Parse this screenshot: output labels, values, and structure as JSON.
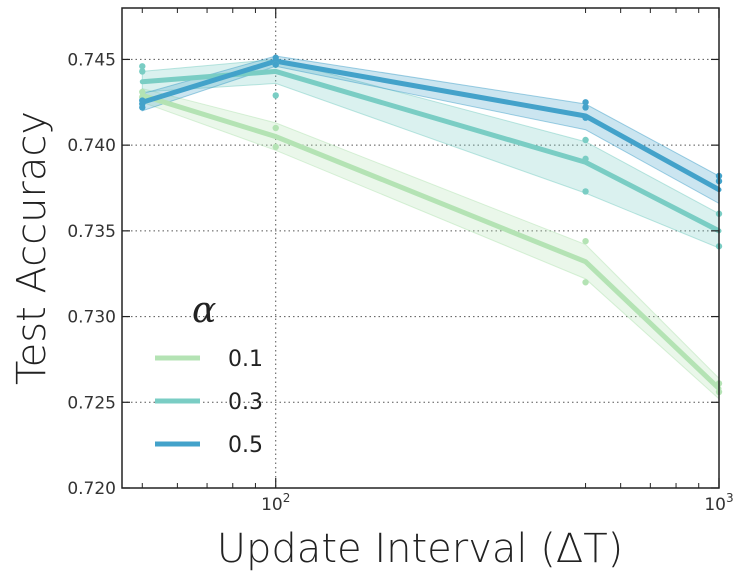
{
  "chart_data": {
    "type": "line",
    "title": "",
    "xlabel": "Update Interval (ΔT)",
    "ylabel": "Test Accuracy",
    "xscale": "log",
    "xlim": [
      45,
      1000
    ],
    "ylim": [
      0.72,
      0.748
    ],
    "x_ticks": [
      {
        "value": 100,
        "base": "10",
        "exp": "2"
      },
      {
        "value": 1000,
        "base": "10",
        "exp": "3"
      }
    ],
    "y_ticks": [
      "0.720",
      "0.725",
      "0.730",
      "0.735",
      "0.740",
      "0.745"
    ],
    "y_tick_values": [
      0.72,
      0.725,
      0.73,
      0.735,
      0.74,
      0.745
    ],
    "grid": true,
    "legend": {
      "title": "α",
      "position": "lower-left"
    },
    "series": [
      {
        "name": "0.1",
        "color": "#b4e3b4",
        "x": [
          50,
          100,
          500,
          1000
        ],
        "values": [
          0.7429,
          0.7405,
          0.7332,
          0.7258
        ],
        "band_upper": [
          0.7433,
          0.7413,
          0.7342,
          0.7264
        ],
        "band_lower": [
          0.7425,
          0.7397,
          0.7322,
          0.7252
        ],
        "samples": [
          [
            50,
            0.7431
          ],
          [
            50,
            0.7428
          ],
          [
            100,
            0.741
          ],
          [
            100,
            0.7399
          ],
          [
            500,
            0.7344
          ],
          [
            500,
            0.732
          ],
          [
            1000,
            0.7261
          ],
          [
            1000,
            0.7256
          ]
        ]
      },
      {
        "name": "0.3",
        "color": "#7acdc4",
        "x": [
          50,
          100,
          500,
          1000
        ],
        "values": [
          0.7437,
          0.7443,
          0.739,
          0.735
        ],
        "band_upper": [
          0.7443,
          0.745,
          0.7402,
          0.736
        ],
        "band_lower": [
          0.7431,
          0.7436,
          0.7372,
          0.734
        ],
        "samples": [
          [
            50,
            0.7446
          ],
          [
            50,
            0.7443
          ],
          [
            100,
            0.7447
          ],
          [
            100,
            0.7429
          ],
          [
            500,
            0.7403
          ],
          [
            500,
            0.7392
          ],
          [
            500,
            0.7373
          ],
          [
            1000,
            0.736
          ],
          [
            1000,
            0.7341
          ]
        ]
      },
      {
        "name": "0.5",
        "color": "#43a2ca",
        "x": [
          50,
          100,
          500,
          1000
        ],
        "values": [
          0.7425,
          0.7449,
          0.7417,
          0.7374
        ],
        "band_upper": [
          0.743,
          0.7452,
          0.7424,
          0.7382
        ],
        "band_lower": [
          0.742,
          0.7446,
          0.7409,
          0.7366
        ],
        "samples": [
          [
            50,
            0.7426
          ],
          [
            50,
            0.7424
          ],
          [
            50,
            0.7422
          ],
          [
            100,
            0.7451
          ],
          [
            100,
            0.7447
          ],
          [
            500,
            0.7425
          ],
          [
            500,
            0.7422
          ],
          [
            500,
            0.7416
          ],
          [
            1000,
            0.7382
          ],
          [
            1000,
            0.7379
          ]
        ]
      }
    ]
  }
}
